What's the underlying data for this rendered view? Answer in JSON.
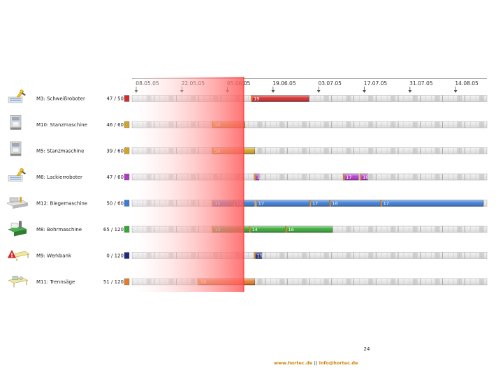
{
  "dates": [
    "08.05.05",
    "22.05.05",
    "05.06.05",
    "19.06.05",
    "03.07.05",
    "17.07.05",
    "31.07.05",
    "14.08.05"
  ],
  "machines": [
    {
      "label": "M3: Schweißroboter",
      "load": "47 / 50",
      "color": "#d42a2a",
      "icon": "robot-arm-icon",
      "jobs": [
        {
          "id": "19",
          "start": 0.335,
          "end": 0.498
        }
      ]
    },
    {
      "label": "M10: Stanzmaschine",
      "load": "46 / 60",
      "color": "#d4a427",
      "icon": "press-machine-icon",
      "jobs": [
        {
          "id": "18",
          "start": 0.225,
          "end": 0.318
        }
      ]
    },
    {
      "label": "M5: Stanzmaschine",
      "load": "39 / 60",
      "color": "#d4a427",
      "icon": "press-machine-icon",
      "jobs": [
        {
          "id": "18",
          "start": 0.225,
          "end": 0.346
        }
      ]
    },
    {
      "label": "M6: Lackierroboter",
      "load": "47 / 60",
      "color": "#b437c9",
      "icon": "robot-arm-icon",
      "jobs": [
        {
          "id": "13",
          "start": 0.344,
          "end": 0.358
        },
        {
          "id": "17",
          "start": 0.595,
          "end": 0.638
        },
        {
          "id": "16",
          "start": 0.642,
          "end": 0.664
        }
      ]
    },
    {
      "label": "M12: Biegemaschine",
      "load": "50 / 60",
      "color": "#3a7bd5",
      "icon": "bending-machine-icon",
      "jobs": [
        {
          "id": "15",
          "start": 0.225,
          "end": 0.286
        },
        {
          "id": "15",
          "start": 0.286,
          "end": 0.345
        },
        {
          "id": "17",
          "start": 0.348,
          "end": 0.5
        },
        {
          "id": "17",
          "start": 0.5,
          "end": 0.556
        },
        {
          "id": "16",
          "start": 0.556,
          "end": 0.7
        },
        {
          "id": "17",
          "start": 0.7,
          "end": 0.99
        }
      ]
    },
    {
      "label": "M8: Bohrmaschine",
      "load": "65 / 120",
      "color": "#34a832",
      "icon": "drill-machine-icon",
      "jobs": [
        {
          "id": "13",
          "start": 0.225,
          "end": 0.33
        },
        {
          "id": "14",
          "start": 0.33,
          "end": 0.432
        },
        {
          "id": "16",
          "start": 0.432,
          "end": 0.565
        }
      ]
    },
    {
      "label": "M9: Werkbank",
      "load": "0 / 120",
      "color": "#1e2a80",
      "icon": "warning-workbench-icon",
      "jobs": [
        {
          "id": "15",
          "start": 0.344,
          "end": 0.366
        }
      ]
    },
    {
      "label": "M11: Trennsäge",
      "load": "51 / 120",
      "color": "#e57d2a",
      "icon": "saw-table-icon",
      "jobs": [
        {
          "id": "19",
          "start": 0.185,
          "end": 0.346
        }
      ]
    }
  ],
  "page_number": "24",
  "footer": {
    "website": "www.hortec.de",
    "separator": "||",
    "email": "info@hortec.de"
  }
}
